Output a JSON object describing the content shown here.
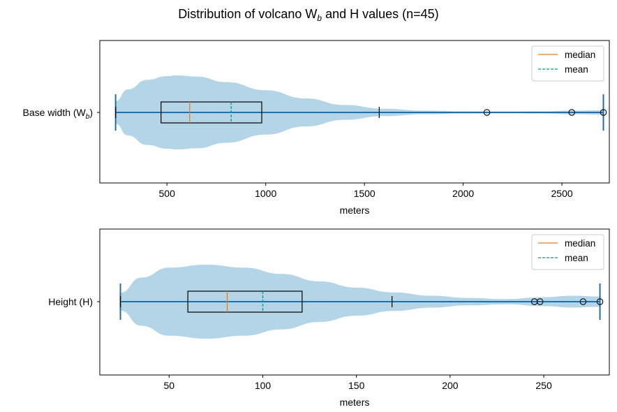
{
  "figure": {
    "title_main": "Distribution of volcano W",
    "title_sub": "b",
    "title_tail": " and H values (n=45)"
  },
  "colors": {
    "violin": "#a6cee3",
    "whisker": "#1f6fa8",
    "median": "#e67e22",
    "mean": "#009e73",
    "box": "#000000"
  },
  "chart_data": [
    {
      "type": "violin+box",
      "ytick_main": "Base width (W",
      "ytick_sub": "b",
      "ytick_tail": ")",
      "xlabel": "meters",
      "xlim": [
        160,
        2740
      ],
      "xticks": [
        500,
        1000,
        1500,
        2000,
        2500
      ],
      "xtick_labels": [
        "500",
        "1000",
        "1500",
        "2000",
        "2500"
      ],
      "min": 240,
      "max": 2710,
      "q1": 470,
      "median": 615,
      "mean": 825,
      "q3": 980,
      "whisker_low": 240,
      "whisker_high": 1575,
      "outliers": [
        2120,
        2550,
        2710
      ],
      "density": [
        [
          240,
          0.3
        ],
        [
          300,
          0.62
        ],
        [
          400,
          0.88
        ],
        [
          500,
          0.98
        ],
        [
          550,
          1.0
        ],
        [
          650,
          0.97
        ],
        [
          800,
          0.82
        ],
        [
          1000,
          0.6
        ],
        [
          1200,
          0.38
        ],
        [
          1400,
          0.2
        ],
        [
          1600,
          0.1
        ],
        [
          1800,
          0.05
        ],
        [
          2000,
          0.03
        ],
        [
          2200,
          0.025
        ],
        [
          2400,
          0.03
        ],
        [
          2550,
          0.05
        ],
        [
          2710,
          0.06
        ]
      ],
      "legend": [
        "median",
        "mean"
      ]
    },
    {
      "type": "violin+box",
      "ytick_main": "Height (H)",
      "ytick_sub": "",
      "ytick_tail": "",
      "xlabel": "meters",
      "xlim": [
        13,
        285
      ],
      "xticks": [
        50,
        100,
        150,
        200,
        250
      ],
      "xtick_labels": [
        "50",
        "100",
        "150",
        "200",
        "250"
      ],
      "min": 24,
      "max": 280,
      "q1": 60,
      "median": 81,
      "mean": 100,
      "q3": 121,
      "whisker_low": 24,
      "whisker_high": 169,
      "outliers": [
        245,
        248,
        271,
        280
      ],
      "density": [
        [
          24,
          0.24
        ],
        [
          35,
          0.65
        ],
        [
          50,
          0.92
        ],
        [
          70,
          1.0
        ],
        [
          90,
          0.92
        ],
        [
          110,
          0.75
        ],
        [
          130,
          0.55
        ],
        [
          150,
          0.38
        ],
        [
          170,
          0.25
        ],
        [
          190,
          0.16
        ],
        [
          210,
          0.1
        ],
        [
          230,
          0.07
        ],
        [
          250,
          0.12
        ],
        [
          265,
          0.16
        ],
        [
          280,
          0.14
        ]
      ],
      "legend": [
        "median",
        "mean"
      ]
    }
  ]
}
